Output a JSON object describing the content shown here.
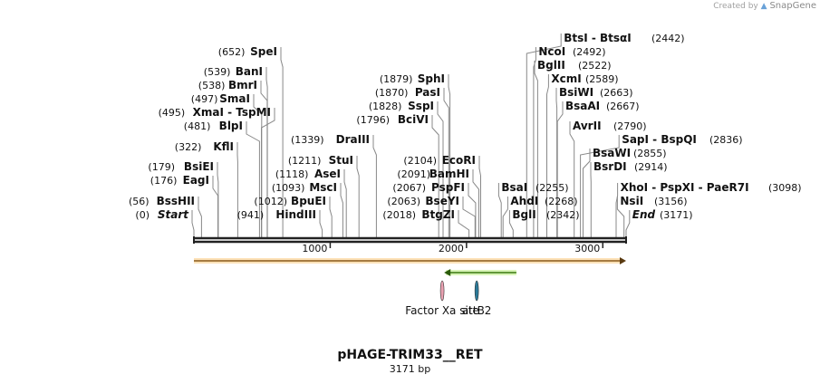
{
  "credit": {
    "prefix": "Created by",
    "brand": "SnapGene",
    "icon": "snapgene-logo-icon"
  },
  "map": {
    "title": "pHAGE-TRIM33__RET",
    "length_label": "3171 bp",
    "total_bp": 3171,
    "ticks": [
      1000,
      2000,
      3000
    ],
    "tick_labels": [
      "1000",
      "2000",
      "3000"
    ]
  },
  "sites": [
    {
      "name": "Start",
      "pos": 0,
      "pos_label": "(0)",
      "italic": true
    },
    {
      "name": "BssHII",
      "pos": 56,
      "pos_label": "(56)"
    },
    {
      "name": "EagI",
      "pos": 176,
      "pos_label": "(176)"
    },
    {
      "name": "BsiEI",
      "pos": 179,
      "pos_label": "(179)"
    },
    {
      "name": "KflI",
      "pos": 322,
      "pos_label": "(322)"
    },
    {
      "name": "BlpI",
      "pos": 481,
      "pos_label": "(481)"
    },
    {
      "name": "XmaI - TspMI",
      "pos": 495,
      "pos_label": "(495)"
    },
    {
      "name": "SmaI",
      "pos": 497,
      "pos_label": "(497)"
    },
    {
      "name": "BmrI",
      "pos": 538,
      "pos_label": "(538)"
    },
    {
      "name": "BanI",
      "pos": 539,
      "pos_label": "(539)"
    },
    {
      "name": "SpeI",
      "pos": 652,
      "pos_label": "(652)"
    },
    {
      "name": "HindIII",
      "pos": 941,
      "pos_label": "(941)"
    },
    {
      "name": "BpuEI",
      "pos": 1012,
      "pos_label": "(1012)"
    },
    {
      "name": "MscI",
      "pos": 1093,
      "pos_label": "(1093)"
    },
    {
      "name": "AseI",
      "pos": 1118,
      "pos_label": "(1118)"
    },
    {
      "name": "StuI",
      "pos": 1211,
      "pos_label": "(1211)"
    },
    {
      "name": "DraIII",
      "pos": 1339,
      "pos_label": "(1339)"
    },
    {
      "name": "BciVI",
      "pos": 1796,
      "pos_label": "(1796)"
    },
    {
      "name": "SspI",
      "pos": 1828,
      "pos_label": "(1828)"
    },
    {
      "name": "PasI",
      "pos": 1870,
      "pos_label": "(1870)"
    },
    {
      "name": "SphI",
      "pos": 1879,
      "pos_label": "(1879)"
    },
    {
      "name": "BtgZI",
      "pos": 2018,
      "pos_label": "(2018)"
    },
    {
      "name": "BseYI",
      "pos": 2063,
      "pos_label": "(2063)"
    },
    {
      "name": "PspFI",
      "pos": 2067,
      "pos_label": "(2067)"
    },
    {
      "name": "BamHI",
      "pos": 2091,
      "pos_label": "(2091)"
    },
    {
      "name": "EcoRI",
      "pos": 2104,
      "pos_label": "(2104)"
    },
    {
      "name": "BsaI",
      "pos": 2255,
      "pos_label": "(2255)"
    },
    {
      "name": "AhdI",
      "pos": 2268,
      "pos_label": "(2268)"
    },
    {
      "name": "BglI",
      "pos": 2342,
      "pos_label": "(2342)"
    },
    {
      "name": "BtsI - BtsαI",
      "pos": 2442,
      "pos_label": "(2442)"
    },
    {
      "name": "NcoI",
      "pos": 2492,
      "pos_label": "(2492)"
    },
    {
      "name": "BglII",
      "pos": 2522,
      "pos_label": "(2522)"
    },
    {
      "name": "XcmI",
      "pos": 2589,
      "pos_label": "(2589)"
    },
    {
      "name": "BsiWI",
      "pos": 2663,
      "pos_label": "(2663)"
    },
    {
      "name": "BsaAI",
      "pos": 2667,
      "pos_label": "(2667)"
    },
    {
      "name": "AvrII",
      "pos": 2790,
      "pos_label": "(2790)"
    },
    {
      "name": "SapI - BspQI",
      "pos": 2836,
      "pos_label": "(2836)"
    },
    {
      "name": "BsaWI",
      "pos": 2855,
      "pos_label": "(2855)"
    },
    {
      "name": "BsrDI",
      "pos": 2914,
      "pos_label": "(2914)"
    },
    {
      "name": "XhoI - PspXI - PaeR7I",
      "pos": 3098,
      "pos_label": "(3098)"
    },
    {
      "name": "NsiI",
      "pos": 3156,
      "pos_label": "(3156)"
    },
    {
      "name": "End",
      "pos": 3171,
      "pos_label": "(3171)",
      "italic": true
    }
  ],
  "features": [
    {
      "name": "",
      "type": "orange-arrow",
      "start": 0,
      "end": 3171,
      "direction": "forward",
      "color": "#f5a623"
    },
    {
      "name": "",
      "type": "green-arrow",
      "start": 1836,
      "end": 2366,
      "direction": "reverse",
      "color": "#7ed321"
    },
    {
      "name": "Factor Xa site",
      "type": "marker",
      "pos": 1822,
      "color": "#e8a0b0"
    },
    {
      "name": "attB2",
      "pos": 2075,
      "type": "marker",
      "color": "#2b7a99"
    }
  ],
  "colors": {
    "backbone": "#222222",
    "leader": "#888888",
    "text": "#111111"
  }
}
